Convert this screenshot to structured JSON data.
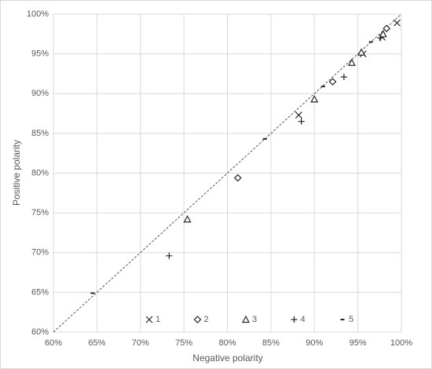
{
  "chart_data": {
    "type": "scatter",
    "x_label": "Negative polarity",
    "y_label": "Positive polarity",
    "xlim": [
      60,
      100
    ],
    "ylim": [
      60,
      100
    ],
    "xticks": [
      {
        "value": 60,
        "label": "60%"
      },
      {
        "value": 65,
        "label": "65%"
      },
      {
        "value": 70,
        "label": "70%"
      },
      {
        "value": 75,
        "label": "75%"
      },
      {
        "value": 80,
        "label": "80%"
      },
      {
        "value": 85,
        "label": "85%"
      },
      {
        "value": 90,
        "label": "90%"
      },
      {
        "value": 95,
        "label": "95%"
      },
      {
        "value": 100,
        "label": "100%"
      }
    ],
    "yticks": [
      {
        "value": 60,
        "label": "60%"
      },
      {
        "value": 65,
        "label": "65%"
      },
      {
        "value": 70,
        "label": "70%"
      },
      {
        "value": 75,
        "label": "75%"
      },
      {
        "value": 80,
        "label": "80%"
      },
      {
        "value": 85,
        "label": "85%"
      },
      {
        "value": 90,
        "label": "90%"
      },
      {
        "value": 95,
        "label": "95%"
      },
      {
        "value": 100,
        "label": "100%"
      }
    ],
    "grid": true,
    "legend": "bottom",
    "diagonal": true,
    "series": [
      {
        "name": "1",
        "marker": "x",
        "color": "#262626",
        "x": [
          88.2,
          95.6,
          97.8,
          99.5
        ],
        "values": [
          87.3,
          95.0,
          97.1,
          98.9
        ]
      },
      {
        "name": "2",
        "marker": "diamond",
        "color": "#262626",
        "x": [
          81.2,
          92.1,
          98.3
        ],
        "values": [
          79.4,
          91.5,
          98.2
        ]
      },
      {
        "name": "3",
        "marker": "triangle",
        "color": "#262626",
        "x": [
          75.4,
          90.0,
          94.3,
          95.4,
          97.9
        ],
        "values": [
          74.2,
          89.3,
          93.9,
          95.2,
          97.5
        ]
      },
      {
        "name": "4",
        "marker": "plus",
        "color": "#262626",
        "x": [
          73.3,
          88.5,
          93.4,
          97.6
        ],
        "values": [
          69.6,
          86.5,
          92.1,
          97.0
        ]
      },
      {
        "name": "5",
        "marker": "dash",
        "color": "#262626",
        "x": [
          64.5,
          84.3,
          91.0,
          96.5
        ],
        "values": [
          64.9,
          84.3,
          90.9,
          96.5
        ]
      }
    ]
  }
}
